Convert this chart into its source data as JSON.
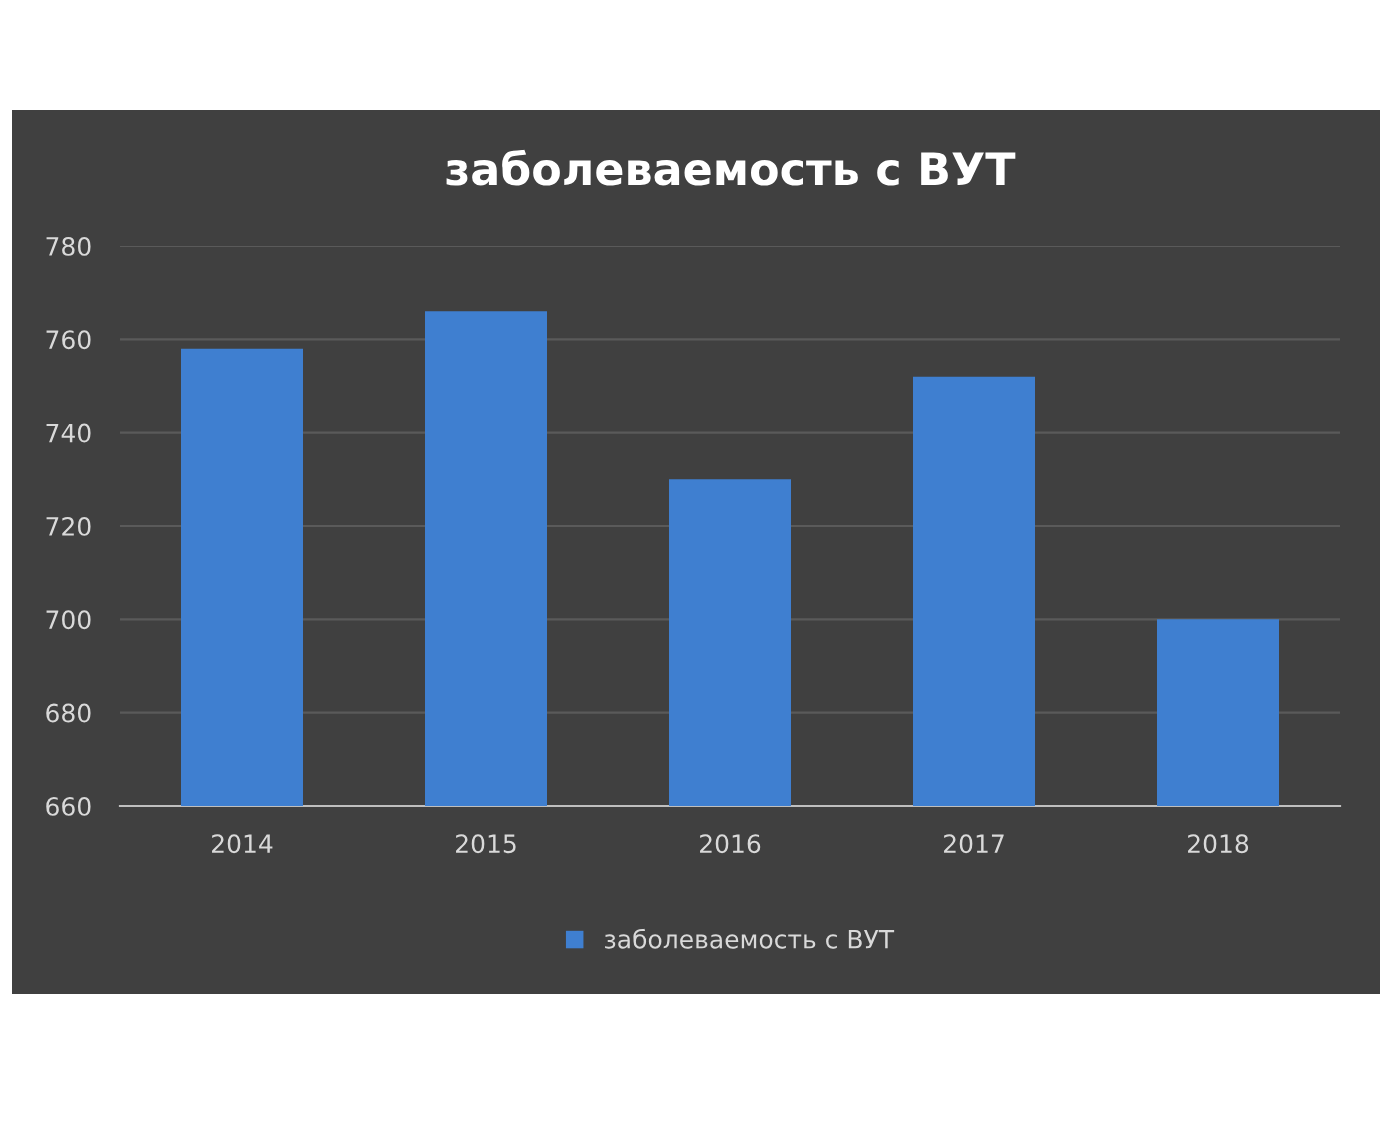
{
  "chart_data": {
    "type": "bar",
    "title": "заболеваемость с ВУТ",
    "categories": [
      "2014",
      "2015",
      "2016",
      "2017",
      "2018"
    ],
    "series": [
      {
        "name": "заболеваемость с ВУТ",
        "color": "#3f7fd0",
        "values": [
          758,
          766,
          730,
          752,
          700
        ]
      }
    ],
    "ylim": [
      660,
      780
    ],
    "yticks": [
      660,
      680,
      700,
      720,
      740,
      760,
      780
    ],
    "grid": "y",
    "legend": "bottom"
  }
}
